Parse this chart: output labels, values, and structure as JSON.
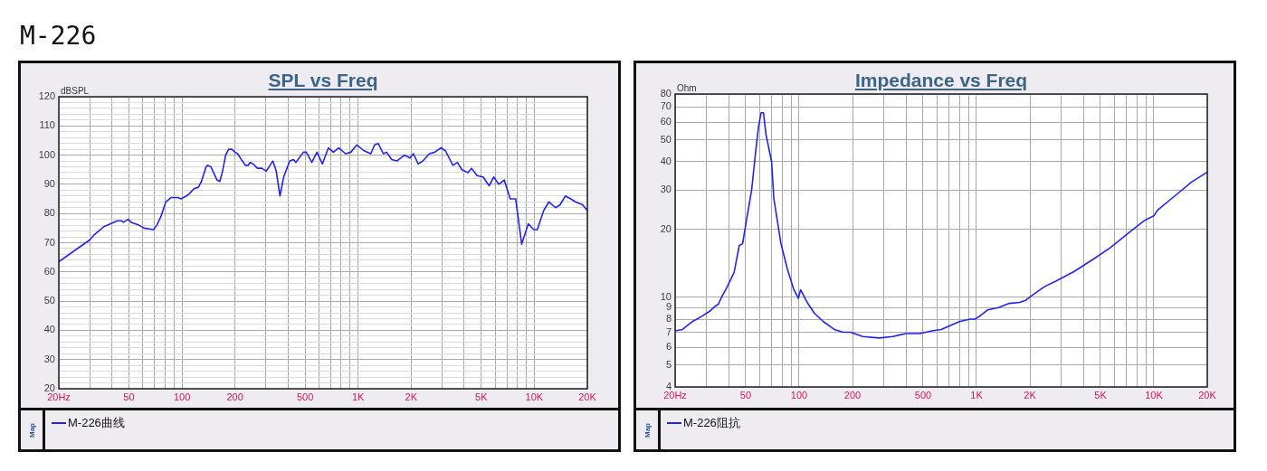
{
  "chart_data": [
    {
      "type": "line",
      "title": "SPL vs Freq",
      "ylabel": "dBSPL",
      "legend_title": "Map",
      "annotations": [
        "M-226"
      ],
      "log": "x",
      "grid": true,
      "legend": "bottom",
      "marker": "none",
      "line_style": "solid",
      "xlim": [
        20,
        20000
      ],
      "xticks": [
        {
          "value": 20,
          "label": "20Hz"
        },
        {
          "value": 30,
          "label": null
        },
        {
          "value": 40,
          "label": null
        },
        50,
        {
          "value": 60,
          "label": null
        },
        {
          "value": 70,
          "label": null
        },
        {
          "value": 80,
          "label": null
        },
        {
          "value": 90,
          "label": null
        },
        100,
        200,
        {
          "value": 300,
          "label": null
        },
        {
          "value": 400,
          "label": null
        },
        500,
        {
          "value": 600,
          "label": null
        },
        {
          "value": 700,
          "label": null
        },
        {
          "value": 800,
          "label": null
        },
        {
          "value": 900,
          "label": null
        },
        {
          "value": 1000,
          "label": "1K"
        },
        {
          "value": 2000,
          "label": "2K"
        },
        {
          "value": 3000,
          "label": null
        },
        {
          "value": 4000,
          "label": null
        },
        {
          "value": 5000,
          "label": "5K"
        },
        {
          "value": 6000,
          "label": null
        },
        {
          "value": 7000,
          "label": null
        },
        {
          "value": 8000,
          "label": null
        },
        {
          "value": 9000,
          "label": null
        },
        {
          "value": 10000,
          "label": "10K"
        },
        {
          "value": 20000,
          "label": "20K"
        }
      ],
      "ylim": [
        20,
        120
      ],
      "yticks": [
        20,
        {
          "value": 22,
          "label": null
        },
        {
          "value": 24,
          "label": null
        },
        {
          "value": 26,
          "label": null
        },
        {
          "value": 28,
          "label": null
        },
        30,
        {
          "value": 32,
          "label": null
        },
        {
          "value": 34,
          "label": null
        },
        {
          "value": 36,
          "label": null
        },
        {
          "value": 38,
          "label": null
        },
        40,
        {
          "value": 42,
          "label": null
        },
        {
          "value": 44,
          "label": null
        },
        {
          "value": 46,
          "label": null
        },
        {
          "value": 48,
          "label": null
        },
        50,
        {
          "value": 52,
          "label": null
        },
        {
          "value": 54,
          "label": null
        },
        {
          "value": 56,
          "label": null
        },
        {
          "value": 58,
          "label": null
        },
        60,
        {
          "value": 62,
          "label": null
        },
        {
          "value": 64,
          "label": null
        },
        {
          "value": 66,
          "label": null
        },
        {
          "value": 68,
          "label": null
        },
        70,
        {
          "value": 72,
          "label": null
        },
        {
          "value": 74,
          "label": null
        },
        {
          "value": 76,
          "label": null
        },
        {
          "value": 78,
          "label": null
        },
        80,
        {
          "value": 82,
          "label": null
        },
        {
          "value": 84,
          "label": null
        },
        {
          "value": 86,
          "label": null
        },
        {
          "value": 88,
          "label": null
        },
        90,
        {
          "value": 92,
          "label": null
        },
        {
          "value": 94,
          "label": null
        },
        {
          "value": 96,
          "label": null
        },
        {
          "value": 98,
          "label": null
        },
        100,
        {
          "value": 102,
          "label": null
        },
        {
          "value": 104,
          "label": null
        },
        {
          "value": 106,
          "label": null
        },
        {
          "value": 108,
          "label": null
        },
        110,
        {
          "value": 112,
          "label": null
        },
        {
          "value": 114,
          "label": null
        },
        {
          "value": 116,
          "label": null
        },
        {
          "value": 118,
          "label": null
        },
        120
      ],
      "series": [
        {
          "name": "M-226曲线",
          "color": "#2424e6",
          "x": [
            20,
            30,
            31.5,
            36,
            43,
            45.5,
            46.5,
            49.5,
            51.5,
            57,
            61,
            69,
            72,
            76,
            81,
            87,
            95,
            98.5,
            102,
            106,
            111,
            117,
            124,
            129,
            137,
            140,
            146,
            158,
            164,
            170,
            177,
            184,
            192,
            200,
            207,
            220,
            229,
            238,
            243,
            253,
            268,
            284,
            301,
            328,
            343,
            360,
            378,
            409,
            430,
            443,
            489,
            508,
            546,
            584,
            627,
            678,
            724,
            776,
            849,
            908,
            984,
            1080,
            1180,
            1240,
            1300,
            1390,
            1450,
            1550,
            1660,
            1830,
            1970,
            2060,
            2190,
            2330,
            2540,
            2720,
            2950,
            3130,
            3450,
            3660,
            3880,
            4200,
            4400,
            4730,
            5120,
            5540,
            5880,
            6290,
            6750,
            7300,
            7840,
            8480,
            9240,
            9930,
            10400,
            11300,
            12100,
            13200,
            14000,
            15000,
            16100,
            17100,
            18800,
            20000
          ],
          "values": [
            63.5,
            71,
            72.5,
            75.5,
            77.5,
            77.5,
            77,
            78,
            77,
            76,
            75,
            74.5,
            76,
            79,
            84,
            85.5,
            85.5,
            85,
            85.5,
            86,
            87,
            88.5,
            89,
            91,
            96,
            96.5,
            96,
            91.5,
            91,
            94.5,
            100,
            102,
            102,
            101,
            100.5,
            98,
            96.5,
            96.5,
            97.5,
            97,
            95.5,
            95.5,
            94.5,
            98,
            94.5,
            86,
            92.5,
            98,
            98.5,
            97.5,
            101,
            101,
            97.5,
            101,
            97,
            102.5,
            101,
            102.5,
            100.5,
            101,
            103.5,
            101.5,
            100.5,
            103.5,
            104,
            100.5,
            101,
            98.5,
            98,
            100,
            99,
            100.5,
            97,
            98,
            100.5,
            101,
            102.5,
            101.5,
            96.5,
            97.5,
            95,
            94,
            95.5,
            93,
            92.5,
            89.5,
            92.5,
            90,
            91.5,
            85,
            85,
            69.5,
            76.5,
            74.5,
            74.5,
            81,
            84,
            82,
            83,
            86,
            85,
            84,
            83,
            81
          ]
        }
      ]
    },
    {
      "type": "line",
      "title": "Impedance vs Freq",
      "ylabel": "Ohm",
      "legend_title": "Map",
      "log": "xy",
      "grid": true,
      "legend": "bottom",
      "marker": "none",
      "line_style": "solid",
      "xlim": [
        20,
        20000
      ],
      "xticks": [
        {
          "value": 20,
          "label": "20Hz"
        },
        {
          "value": 30,
          "label": null
        },
        {
          "value": 40,
          "label": null
        },
        50,
        {
          "value": 60,
          "label": null
        },
        {
          "value": 70,
          "label": null
        },
        {
          "value": 80,
          "label": null
        },
        {
          "value": 90,
          "label": null
        },
        100,
        200,
        {
          "value": 300,
          "label": null
        },
        {
          "value": 400,
          "label": null
        },
        500,
        {
          "value": 600,
          "label": null
        },
        {
          "value": 700,
          "label": null
        },
        {
          "value": 800,
          "label": null
        },
        {
          "value": 900,
          "label": null
        },
        {
          "value": 1000,
          "label": "1K"
        },
        {
          "value": 2000,
          "label": "2K"
        },
        {
          "value": 3000,
          "label": null
        },
        {
          "value": 4000,
          "label": null
        },
        {
          "value": 5000,
          "label": "5K"
        },
        {
          "value": 6000,
          "label": null
        },
        {
          "value": 7000,
          "label": null
        },
        {
          "value": 8000,
          "label": null
        },
        {
          "value": 9000,
          "label": null
        },
        {
          "value": 10000,
          "label": "10K"
        },
        {
          "value": 20000,
          "label": "20K"
        }
      ],
      "ylim": [
        4,
        80
      ],
      "yticks": [
        4,
        5,
        6,
        7,
        8,
        9,
        10,
        20,
        30,
        40,
        50,
        60,
        70,
        80
      ],
      "series": [
        {
          "name": "M-226阻抗",
          "color": "#2424e6",
          "x": [
            20,
            22,
            25,
            28,
            31.5,
            34,
            35,
            36.5,
            39,
            43,
            46,
            48,
            50.5,
            54,
            57,
            59,
            61,
            63,
            65,
            70,
            72,
            79,
            86,
            93,
            99,
            102,
            111,
            122,
            137,
            158,
            177,
            195,
            228,
            283,
            338,
            366,
            400,
            480,
            560,
            632,
            800,
            920,
            980,
            1030,
            1160,
            1330,
            1530,
            1750,
            1890,
            2130,
            2440,
            2800,
            3540,
            4570,
            5670,
            7610,
            8890,
            10000,
            10500,
            13700,
            16300,
            20000
          ],
          "values": [
            7.1,
            7.2,
            7.8,
            8.2,
            8.7,
            9.2,
            9.3,
            10,
            11,
            12.9,
            17,
            17.3,
            22,
            30,
            45,
            57,
            66,
            66,
            53,
            40,
            27.5,
            17.3,
            13.3,
            10.9,
            9.9,
            10.8,
            9.5,
            8.5,
            7.8,
            7.2,
            7,
            7,
            6.7,
            6.6,
            6.7,
            6.8,
            6.9,
            6.9,
            7.1,
            7.2,
            7.8,
            8,
            8,
            8.2,
            8.8,
            9,
            9.4,
            9.5,
            9.7,
            10.4,
            11.2,
            11.8,
            13,
            14.8,
            16.6,
            20,
            22,
            23,
            24.4,
            29,
            32.5,
            36
          ]
        }
      ]
    }
  ]
}
